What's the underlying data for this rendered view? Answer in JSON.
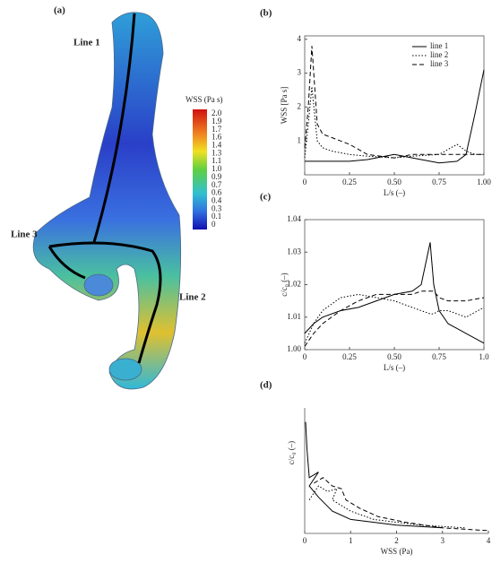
{
  "panel_a": {
    "label": "(a)",
    "colorbar_title": "WSS (Pa s)",
    "colorbar_ticks": [
      "2.0",
      "1.9",
      "1.7",
      "1.6",
      "1.4",
      "1.3",
      "1.1",
      "1.0",
      "0.9",
      "0.7",
      "0.6",
      "0.4",
      "0.3",
      "0.1",
      "0"
    ],
    "line_labels": [
      "Line 1",
      "Line 2",
      "Line 3"
    ]
  },
  "chart_data": [
    {
      "type": "line",
      "label": "(b)",
      "ylabel": "WSS [Pa s]",
      "xlabel": "L/s (–)",
      "frame": true,
      "legend": "top-right",
      "x": [
        0,
        0.02,
        0.04,
        0.07,
        0.1,
        0.15,
        0.25,
        0.35,
        0.5,
        0.6,
        0.75,
        0.85,
        0.9,
        0.95,
        1.0
      ],
      "series": [
        {
          "name": "line 1",
          "color": "#000000",
          "style": "solid",
          "values": [
            0.4,
            0.4,
            0.4,
            0.4,
            0.4,
            0.4,
            0.4,
            0.45,
            0.6,
            0.5,
            0.35,
            0.4,
            0.6,
            1.8,
            3.1
          ]
        },
        {
          "name": "line 2",
          "color": "#000000",
          "style": "dotted",
          "values": [
            0.5,
            1.5,
            2.6,
            1.0,
            0.8,
            0.7,
            0.6,
            0.55,
            0.5,
            0.55,
            0.6,
            0.9,
            0.7,
            0.6,
            0.6
          ]
        },
        {
          "name": "line 3",
          "color": "#000000",
          "style": "dashed",
          "values": [
            0.8,
            2.0,
            3.8,
            1.5,
            1.2,
            1.1,
            0.9,
            0.6,
            0.5,
            0.6,
            0.6,
            0.6,
            0.6,
            0.6,
            0.6
          ]
        }
      ],
      "xlim": [
        0,
        1
      ],
      "ylim": [
        0,
        4.1
      ],
      "xticks": [
        0,
        0.25,
        {
          "value": 0.5,
          "label": "0.50"
        },
        0.75,
        {
          "value": 1,
          "label": "1.00"
        }
      ],
      "yticks": [
        1,
        2,
        3,
        4
      ]
    },
    {
      "type": "line",
      "label": "(c)",
      "ylabel": "c/c₀ (–)",
      "xlabel": "L/s (–)",
      "frame": true,
      "x": [
        0,
        0.05,
        0.1,
        0.2,
        0.3,
        0.4,
        0.5,
        0.6,
        0.65,
        0.7,
        0.72,
        0.75,
        0.8,
        0.9,
        1.0
      ],
      "series": [
        {
          "name": "line 1",
          "color": "#000000",
          "style": "solid",
          "values": [
            1.005,
            1.008,
            1.01,
            1.012,
            1.013,
            1.015,
            1.017,
            1.018,
            1.02,
            1.033,
            1.02,
            1.012,
            1.008,
            1.005,
            1.002
          ]
        },
        {
          "name": "line 2",
          "color": "#000000",
          "style": "dotted",
          "values": [
            1.002,
            1.008,
            1.012,
            1.016,
            1.017,
            1.016,
            1.015,
            1.013,
            1.012,
            1.011,
            1.011,
            1.012,
            1.012,
            1.01,
            1.013
          ]
        },
        {
          "name": "line 3",
          "color": "#000000",
          "style": "dashed",
          "values": [
            1.001,
            1.005,
            1.008,
            1.012,
            1.015,
            1.017,
            1.017,
            1.017,
            1.018,
            1.018,
            1.018,
            1.016,
            1.015,
            1.015,
            1.016
          ]
        }
      ],
      "xlim": [
        0,
        1
      ],
      "ylim": [
        1.0,
        1.04
      ],
      "xticks": [
        0,
        0.25,
        {
          "value": 0.5,
          "label": "0.50"
        },
        0.75,
        {
          "value": 1,
          "label": "1.0"
        }
      ],
      "yticks": [
        {
          "value": 1.0,
          "label": "1.00"
        },
        1.01,
        1.02,
        1.03,
        {
          "value": 1.04,
          "label": "1.04"
        }
      ]
    },
    {
      "type": "line",
      "label": "(d)",
      "ylabel": "c/c₀ (–)",
      "xlabel": "WSS (Pa)",
      "frame": false,
      "series": [
        {
          "name": "line 1",
          "color": "#000000",
          "style": "solid",
          "x": [
            0.02,
            0.05,
            0.1,
            0.3,
            0.1,
            0.3,
            0.6,
            1.0,
            2.0,
            3.0
          ],
          "values": [
            1.04,
            1.03,
            1.02,
            1.022,
            1.017,
            1.013,
            1.008,
            1.005,
            1.003,
            1.002
          ]
        },
        {
          "name": "line 2",
          "color": "#000000",
          "style": "dotted",
          "x": [
            0.1,
            0.3,
            0.5,
            0.7,
            0.6,
            0.8,
            1.0,
            1.5,
            2.5,
            3.5
          ],
          "values": [
            1.012,
            1.017,
            1.015,
            1.016,
            1.012,
            1.01,
            1.008,
            1.005,
            1.003,
            1.002
          ]
        },
        {
          "name": "line 3",
          "color": "#000000",
          "style": "dashed",
          "x": [
            0.2,
            0.4,
            0.6,
            0.8,
            0.9,
            1.2,
            1.6,
            2.2,
            3.0,
            4.0
          ],
          "values": [
            1.018,
            1.02,
            1.017,
            1.016,
            1.012,
            1.009,
            1.006,
            1.004,
            1.002,
            1.001
          ]
        }
      ],
      "xlim": [
        0,
        4
      ],
      "ylim": [
        1.0,
        1.045
      ],
      "xticks": [
        0,
        1,
        2,
        3,
        4
      ]
    }
  ]
}
